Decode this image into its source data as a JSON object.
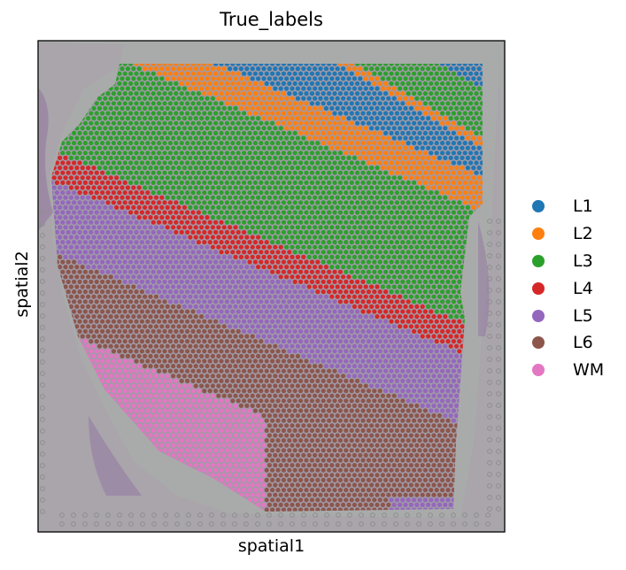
{
  "chart_data": {
    "type": "scatter",
    "title": "True_labels",
    "xlabel": "spatial1",
    "ylabel": "spatial2",
    "background": "H&E tissue image",
    "grid": false,
    "legend_position": "right",
    "series": [
      {
        "name": "L1",
        "color": "#1f77b4"
      },
      {
        "name": "L2",
        "color": "#ff7f0e"
      },
      {
        "name": "L3",
        "color": "#2ca02c"
      },
      {
        "name": "L4",
        "color": "#d62728"
      },
      {
        "name": "L5",
        "color": "#9467bd"
      },
      {
        "name": "L6",
        "color": "#8c564b"
      },
      {
        "name": "WM",
        "color": "#e377c2"
      }
    ]
  }
}
